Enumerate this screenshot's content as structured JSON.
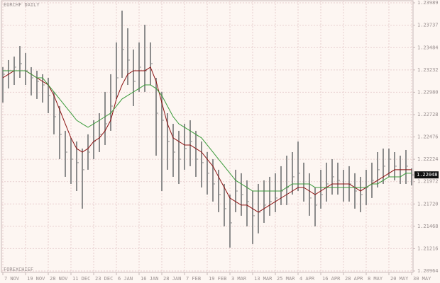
{
  "chart_data": {
    "type": "hlc",
    "title": "EURCHF DAILY",
    "watermark": "FOREXCHIEF",
    "categories": [
      "7 NOV",
      null,
      null,
      null,
      "19 NOV",
      null,
      null,
      null,
      "28 NOV",
      null,
      null,
      null,
      "11 DEC",
      null,
      null,
      null,
      "23 DEC",
      null,
      null,
      null,
      "6 JAN",
      null,
      null,
      null,
      "16 JAN",
      null,
      null,
      null,
      "28 JAN",
      null,
      null,
      null,
      "7 FEB",
      null,
      null,
      null,
      "19 FEB",
      null,
      null,
      null,
      "3 MAR",
      null,
      null,
      null,
      "13 MAR",
      null,
      null,
      null,
      "25 MAR",
      null,
      null,
      null,
      "4 APR",
      null,
      null,
      null,
      "16 APR",
      null,
      null,
      null,
      "28 APR",
      null,
      null,
      null,
      "8 MAY",
      null,
      null,
      null,
      "20 MAY",
      null,
      null,
      null,
      "30 MAY"
    ],
    "high": [
      1.23263,
      1.23343,
      1.23383,
      1.23502,
      1.23422,
      1.23263,
      1.23223,
      1.23183,
      1.23143,
      1.22984,
      1.22824,
      1.22545,
      1.22465,
      1.22425,
      1.22345,
      1.22505,
      1.22664,
      1.22744,
      1.22984,
      1.23183,
      1.23542,
      1.23901,
      1.23702,
      1.23462,
      1.23542,
      1.23742,
      1.23542,
      1.23143,
      1.22984,
      1.22744,
      1.22624,
      1.22545,
      1.22624,
      1.22664,
      1.22545,
      1.22425,
      1.22305,
      1.22225,
      1.22106,
      1.21946,
      1.21826,
      1.22106,
      1.22066,
      1.21986,
      1.21866,
      1.21946,
      1.21986,
      1.22026,
      1.22066,
      1.22146,
      1.22265,
      1.22305,
      1.22425,
      1.22186,
      1.22066,
      1.21906,
      1.22106,
      1.22186,
      1.22225,
      1.22186,
      1.22106,
      1.22146,
      1.22066,
      1.22026,
      1.22106,
      1.22186,
      1.22305,
      1.22345,
      1.22345,
      1.22305,
      1.22265,
      1.22329,
      1.22122
    ],
    "low": [
      1.22864,
      1.23023,
      1.23063,
      1.23143,
      1.23063,
      1.22944,
      1.22904,
      1.22864,
      1.22744,
      1.22505,
      1.22225,
      1.22026,
      1.21946,
      1.21866,
      1.21667,
      1.22106,
      1.22225,
      1.22305,
      1.22385,
      1.22545,
      1.22904,
      1.23143,
      1.23063,
      1.22824,
      1.22984,
      1.22984,
      1.23063,
      1.22265,
      1.21866,
      1.22106,
      1.22026,
      1.21946,
      1.22106,
      1.22146,
      1.22026,
      1.21906,
      1.21826,
      1.21747,
      1.21627,
      1.21467,
      1.21228,
      1.21627,
      1.21587,
      1.21467,
      1.21268,
      1.21388,
      1.21507,
      1.21587,
      1.21627,
      1.21707,
      1.21707,
      1.21826,
      1.21866,
      1.21747,
      1.21587,
      1.21467,
      1.21667,
      1.21747,
      1.21826,
      1.21826,
      1.21747,
      1.21747,
      1.21667,
      1.21627,
      1.21707,
      1.21787,
      1.21906,
      1.21946,
      1.22026,
      1.21986,
      1.21946,
      1.21946,
      1.2193
    ],
    "close": [
      1.23183,
      1.23223,
      1.23263,
      1.23303,
      1.23223,
      1.23143,
      1.23103,
      1.23063,
      1.22944,
      1.22704,
      1.22505,
      1.22305,
      1.22225,
      1.22186,
      1.22106,
      1.22305,
      1.22425,
      1.22505,
      1.22624,
      1.22824,
      1.23143,
      1.23462,
      1.23343,
      1.23103,
      1.23263,
      1.23223,
      1.23303,
      1.22744,
      1.22664,
      1.22425,
      1.22305,
      1.22225,
      1.22345,
      1.22425,
      1.22225,
      1.22186,
      1.22066,
      1.21946,
      1.21826,
      1.21667,
      1.21507,
      1.21866,
      1.21826,
      1.21747,
      1.21587,
      1.21627,
      1.21707,
      1.21747,
      1.21787,
      1.21866,
      1.21906,
      1.22026,
      1.22066,
      1.21946,
      1.21787,
      1.21707,
      1.21826,
      1.21946,
      1.22026,
      1.21986,
      1.21906,
      1.21946,
      1.21866,
      1.21826,
      1.21906,
      1.21986,
      1.22106,
      1.22146,
      1.22225,
      1.22146,
      1.22106,
      1.22146,
      1.22048
    ],
    "bar_color": "#8c8c8c",
    "ma_lines": [
      {
        "color": "#8b1010",
        "values": [
          1.23143,
          1.23183,
          1.23223,
          1.23223,
          1.23223,
          1.23183,
          1.23143,
          1.23103,
          1.23063,
          1.22944,
          1.22784,
          1.22624,
          1.22465,
          1.22345,
          1.22305,
          1.22345,
          1.22425,
          1.22465,
          1.22545,
          1.22664,
          1.22904,
          1.23063,
          1.23183,
          1.23223,
          1.23223,
          1.23223,
          1.23263,
          1.23103,
          1.22864,
          1.22624,
          1.22465,
          1.22425,
          1.22385,
          1.22385,
          1.22345,
          1.22305,
          1.22225,
          1.22146,
          1.22026,
          1.21906,
          1.21787,
          1.21747,
          1.21707,
          1.21707,
          1.21667,
          1.21627,
          1.21667,
          1.21707,
          1.21747,
          1.21787,
          1.21826,
          1.21866,
          1.21906,
          1.21906,
          1.21866,
          1.21826,
          1.21866,
          1.21906,
          1.21946,
          1.21946,
          1.21946,
          1.21946,
          1.21906,
          1.21866,
          1.21906,
          1.21946,
          1.21986,
          1.22026,
          1.22066,
          1.22106,
          1.22106,
          1.22106,
          1.22106
        ]
      },
      {
        "color": "#3a9a3a",
        "values": [
          1.23223,
          1.23223,
          1.23223,
          1.23223,
          1.23223,
          1.23183,
          1.23143,
          1.23143,
          1.23063,
          1.22984,
          1.22904,
          1.22824,
          1.22744,
          1.22664,
          1.22624,
          1.22585,
          1.22624,
          1.22664,
          1.22704,
          1.22744,
          1.22824,
          1.22904,
          1.22944,
          1.22984,
          1.23023,
          1.23063,
          1.23063,
          1.23023,
          1.22944,
          1.22824,
          1.22704,
          1.22624,
          1.22585,
          1.22545,
          1.22505,
          1.22465,
          1.22385,
          1.22305,
          1.22225,
          1.22146,
          1.22066,
          1.21986,
          1.21946,
          1.21906,
          1.21866,
          1.21866,
          1.21866,
          1.21866,
          1.21866,
          1.21866,
          1.21906,
          1.21946,
          1.21946,
          1.21946,
          1.21946,
          1.21906,
          1.21906,
          1.21906,
          1.21906,
          1.21906,
          1.21906,
          1.21906,
          1.21906,
          1.21906,
          1.21906,
          1.21946,
          1.21946,
          1.21986,
          1.22026,
          1.22026,
          1.22026,
          1.22066,
          1.22066
        ]
      }
    ],
    "current_price": 1.22048,
    "ylim": [
      1.20964,
      1.23989
    ],
    "yticks": [
      1.23989,
      1.23737,
      1.23484,
      1.23232,
      {
        "value": 1.2298,
        "label": "1.22980"
      },
      1.22728,
      1.22476,
      1.22224,
      1.21972,
      {
        "value": 1.2172,
        "label": "1.21720"
      },
      1.21468,
      1.21216,
      1.20964
    ],
    "grid": true
  }
}
